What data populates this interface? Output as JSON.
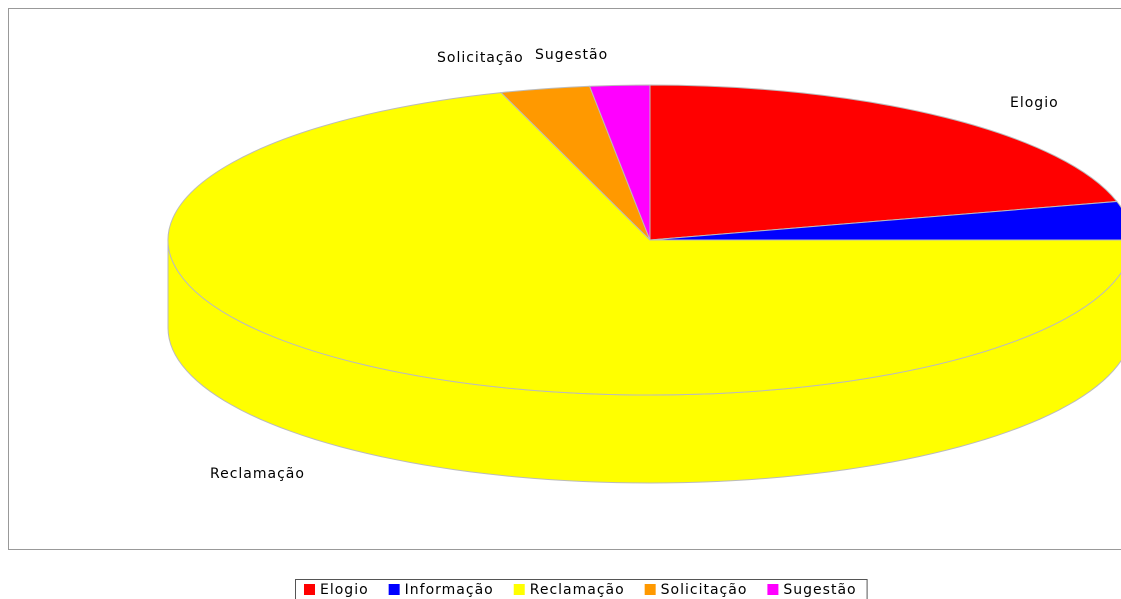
{
  "chart_data": {
    "type": "pie3d",
    "categories": [
      "Elogio",
      "Informação",
      "Reclamação",
      "Solicitação",
      "Sugestão"
    ],
    "values": [
      21,
      4,
      70,
      3,
      2
    ],
    "colors": [
      "#ff0000",
      "#0000ff",
      "#ffff00",
      "#ff9900",
      "#ff00ff"
    ],
    "legend": "bottom"
  }
}
